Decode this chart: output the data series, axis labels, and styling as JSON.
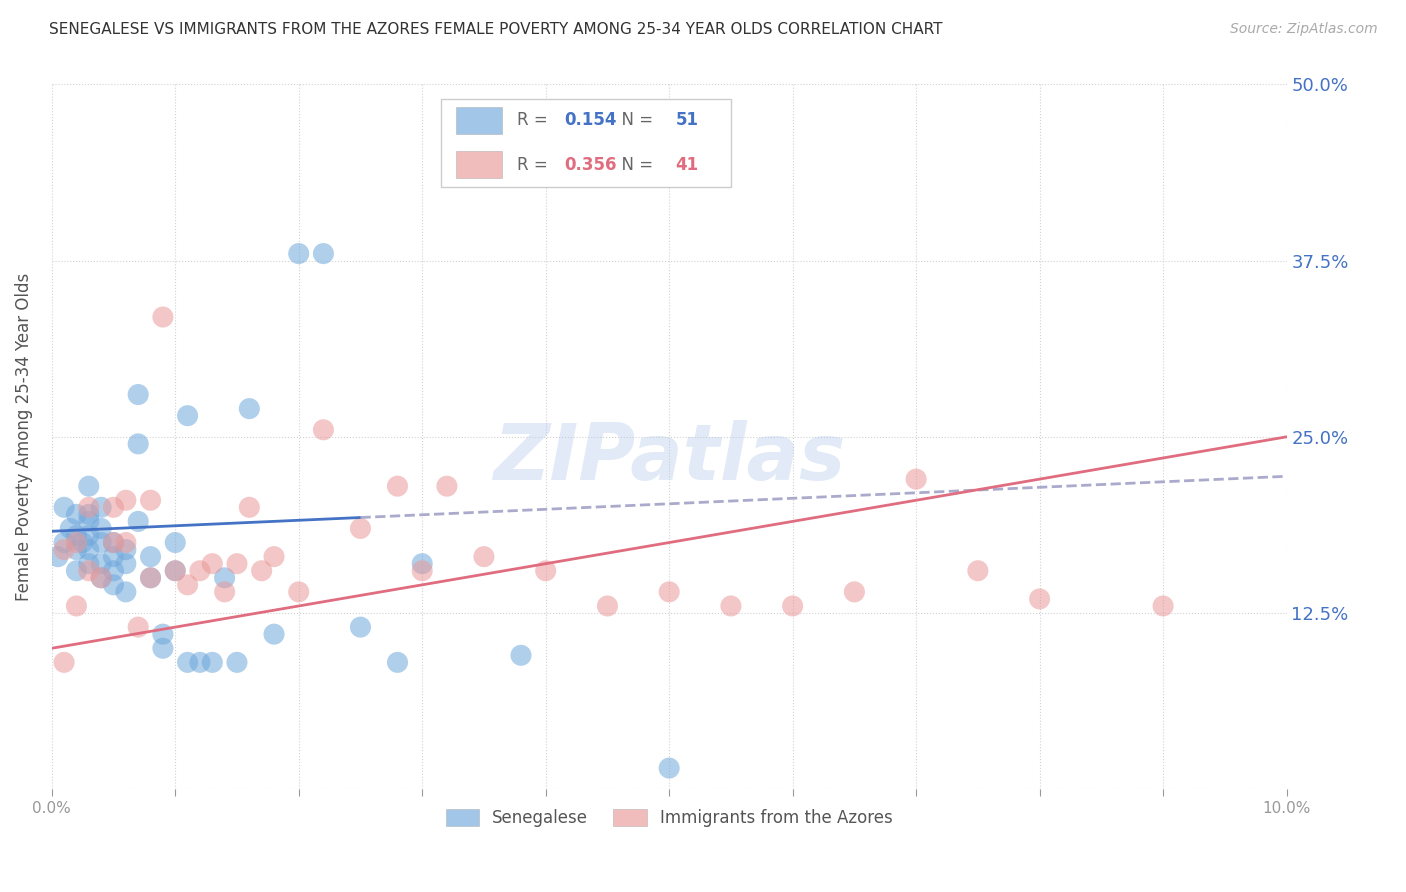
{
  "title": "SENEGALESE VS IMMIGRANTS FROM THE AZORES FEMALE POVERTY AMONG 25-34 YEAR OLDS CORRELATION CHART",
  "source": "Source: ZipAtlas.com",
  "ylabel": "Female Poverty Among 25-34 Year Olds",
  "yticks": [
    0.0,
    0.125,
    0.25,
    0.375,
    0.5
  ],
  "ytick_labels": [
    "",
    "12.5%",
    "25.0%",
    "37.5%",
    "50.0%"
  ],
  "xlim": [
    0.0,
    0.1
  ],
  "ylim": [
    0.0,
    0.5
  ],
  "senegalese_R": 0.154,
  "senegalese_N": 51,
  "azores_R": 0.356,
  "azores_N": 41,
  "senegalese_color": "#6fa8dc",
  "azores_color": "#ea9999",
  "trend_senegalese_color": "#4472c4",
  "trend_azores_color": "#e06c7f",
  "watermark": "ZIPatlas",
  "legend_label_senegalese": "Senegalese",
  "legend_label_azores": "Immigrants from the Azores",
  "senegalese_x": [
    0.0005,
    0.001,
    0.001,
    0.0015,
    0.002,
    0.002,
    0.002,
    0.002,
    0.0025,
    0.003,
    0.003,
    0.003,
    0.003,
    0.003,
    0.003,
    0.004,
    0.004,
    0.004,
    0.004,
    0.004,
    0.005,
    0.005,
    0.005,
    0.005,
    0.006,
    0.006,
    0.006,
    0.007,
    0.007,
    0.007,
    0.008,
    0.008,
    0.009,
    0.009,
    0.01,
    0.01,
    0.011,
    0.011,
    0.012,
    0.013,
    0.014,
    0.015,
    0.016,
    0.018,
    0.02,
    0.022,
    0.025,
    0.028,
    0.03,
    0.038,
    0.05
  ],
  "senegalese_y": [
    0.165,
    0.175,
    0.2,
    0.185,
    0.155,
    0.17,
    0.18,
    0.195,
    0.175,
    0.16,
    0.17,
    0.18,
    0.19,
    0.195,
    0.215,
    0.15,
    0.16,
    0.175,
    0.185,
    0.2,
    0.145,
    0.155,
    0.165,
    0.175,
    0.14,
    0.16,
    0.17,
    0.19,
    0.245,
    0.28,
    0.15,
    0.165,
    0.1,
    0.11,
    0.155,
    0.175,
    0.09,
    0.265,
    0.09,
    0.09,
    0.15,
    0.09,
    0.27,
    0.11,
    0.38,
    0.38,
    0.115,
    0.09,
    0.16,
    0.095,
    0.015
  ],
  "azores_x": [
    0.001,
    0.001,
    0.002,
    0.002,
    0.003,
    0.003,
    0.004,
    0.005,
    0.005,
    0.006,
    0.006,
    0.007,
    0.008,
    0.008,
    0.009,
    0.01,
    0.011,
    0.012,
    0.013,
    0.014,
    0.015,
    0.016,
    0.017,
    0.018,
    0.02,
    0.022,
    0.025,
    0.028,
    0.03,
    0.032,
    0.035,
    0.04,
    0.045,
    0.05,
    0.055,
    0.06,
    0.065,
    0.07,
    0.075,
    0.08,
    0.09
  ],
  "azores_y": [
    0.17,
    0.09,
    0.13,
    0.175,
    0.155,
    0.2,
    0.15,
    0.175,
    0.2,
    0.175,
    0.205,
    0.115,
    0.15,
    0.205,
    0.335,
    0.155,
    0.145,
    0.155,
    0.16,
    0.14,
    0.16,
    0.2,
    0.155,
    0.165,
    0.14,
    0.255,
    0.185,
    0.215,
    0.155,
    0.215,
    0.165,
    0.155,
    0.13,
    0.14,
    0.13,
    0.13,
    0.14,
    0.22,
    0.155,
    0.135,
    0.13
  ],
  "trend_sen_x0": 0.0,
  "trend_sen_x1": 0.1,
  "trend_sen_y0": 0.183,
  "trend_sen_y1": 0.222,
  "trend_az_x0": 0.0,
  "trend_az_x1": 0.1,
  "trend_az_y0": 0.1,
  "trend_az_y1": 0.25
}
